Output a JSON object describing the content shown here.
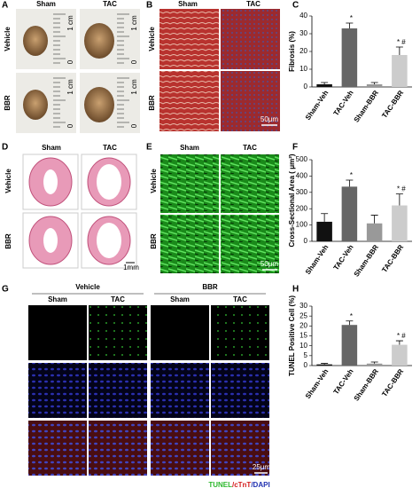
{
  "panels": {
    "a": {
      "label": "A",
      "columns": [
        "Sham",
        "TAC"
      ],
      "rows": [
        "Vehicle",
        "BBR"
      ],
      "ruler_labels": [
        "1 cm",
        "0"
      ]
    },
    "b": {
      "label": "B",
      "columns": [
        "Sham",
        "TAC"
      ],
      "rows": [
        "Vehicle",
        "BBR"
      ],
      "scale_bar": "50μm"
    },
    "d": {
      "label": "D",
      "columns": [
        "Sham",
        "TAC"
      ],
      "rows": [
        "Vehicle",
        "BBR"
      ],
      "scale_bar": "1mm"
    },
    "e": {
      "label": "E",
      "columns": [
        "Sham",
        "TAC"
      ],
      "rows": [
        "Vehicle",
        "BBR"
      ],
      "scale_bar": "50μm"
    },
    "g": {
      "label": "G",
      "groups": [
        "Vehicle",
        "BBR"
      ],
      "columns": [
        "Sham",
        "TAC",
        "Sham",
        "TAC"
      ],
      "scale_bar": "25μm",
      "stain_label": [
        "TUNEL",
        "/cTnT",
        "/DAPI"
      ]
    }
  },
  "chart_data": [
    {
      "type": "bar",
      "label": "C",
      "y_label": "Fibrosis (%)",
      "categories": [
        "Sham-Veh",
        "TAC-Veh",
        "Sham-BBR",
        "TAC-BBR"
      ],
      "values": [
        1.5,
        33,
        1.5,
        18
      ],
      "errors": [
        1,
        3,
        1,
        4.5
      ],
      "colors": [
        "#111111",
        "#666666",
        "#999999",
        "#cccccc"
      ],
      "annotations": [
        null,
        "*",
        null,
        "* #"
      ],
      "ylim": [
        0,
        40
      ],
      "yticks": [
        0,
        10,
        20,
        30,
        40
      ]
    },
    {
      "type": "bar",
      "label": "F",
      "y_label": "Cross-Sectional Area ( μm²)",
      "categories": [
        "Sham-Veh",
        "TAC-Veh",
        "Sham-BBR",
        "TAC-BBR"
      ],
      "values": [
        120,
        335,
        110,
        220
      ],
      "errors": [
        50,
        40,
        50,
        70
      ],
      "colors": [
        "#111111",
        "#666666",
        "#999999",
        "#cccccc"
      ],
      "annotations": [
        null,
        "*",
        null,
        "* #"
      ],
      "ylim": [
        0,
        500
      ],
      "yticks": [
        0,
        100,
        200,
        300,
        400,
        500
      ]
    },
    {
      "type": "bar",
      "label": "H",
      "y_label": "TUNEL Positive Cell (%)",
      "categories": [
        "Sham-Veh",
        "TAC-Veh",
        "Sham-BBR",
        "TAC-BBR"
      ],
      "values": [
        0.6,
        20.5,
        1,
        10.5
      ],
      "errors": [
        0.5,
        2,
        0.8,
        2
      ],
      "colors": [
        "#111111",
        "#666666",
        "#999999",
        "#cccccc"
      ],
      "annotations": [
        null,
        "*",
        null,
        "* #"
      ],
      "ylim": [
        0,
        30
      ],
      "yticks": [
        0,
        5,
        10,
        15,
        20,
        25,
        30
      ]
    }
  ]
}
